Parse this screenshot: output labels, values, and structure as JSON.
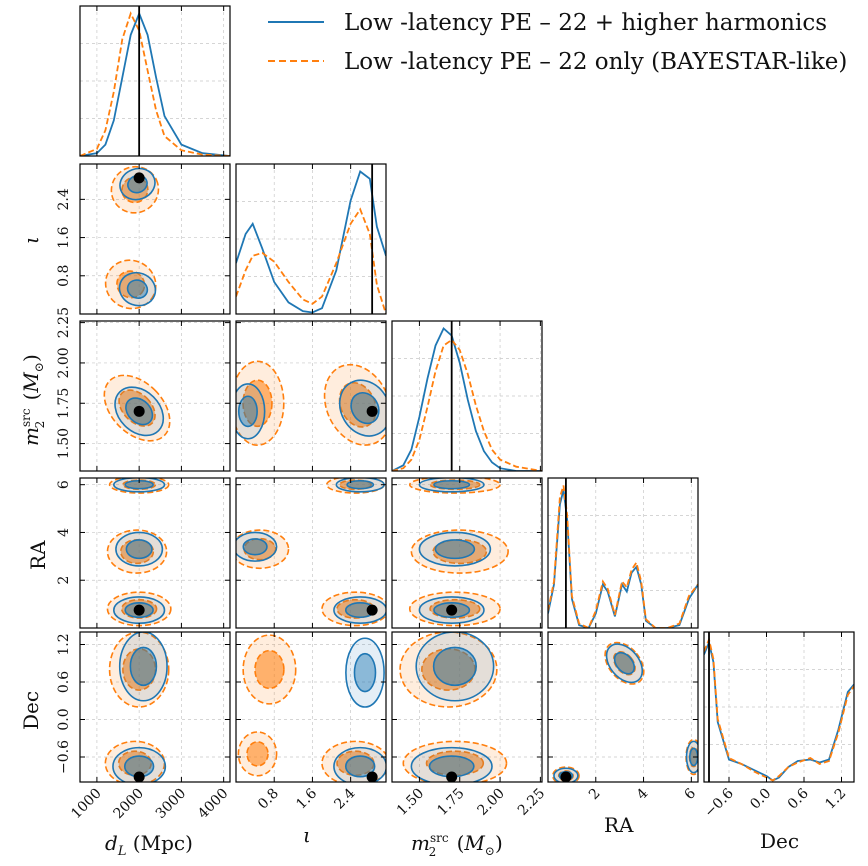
{
  "legend": [
    {
      "label": "Low -latency PE – 22 + higher harmonics",
      "color": "#1f77b4",
      "dash": "solid"
    },
    {
      "label": "Low -latency PE – 22 only (BAYESTAR-like)",
      "color": "#ff7f0e",
      "dash": "dashed"
    }
  ],
  "axis_labels": {
    "dL": "d_L (Mpc)",
    "iota": "ι",
    "m2": "m_2^src (M_⊙)",
    "RA": "RA",
    "Dec": "Dec"
  },
  "chart_data": {
    "type": "corner",
    "params": [
      "dL",
      "iota",
      "m2",
      "RA",
      "Dec"
    ],
    "ranges": {
      "dL": [
        600,
        4150
      ],
      "iota": [
        0.0,
        3.14
      ],
      "m2": [
        1.33,
        2.26
      ],
      "RA": [
        0.0,
        6.28
      ],
      "Dec": [
        -1.0,
        1.4
      ]
    },
    "ticks": {
      "dL": [
        "1000",
        "2000",
        "3000",
        "4000"
      ],
      "iota": [
        "0.8",
        "1.6",
        "2.4"
      ],
      "m2": [
        "1.50",
        "1.75",
        "2.00",
        "2.25"
      ],
      "RA": [
        "2",
        "4",
        "6"
      ],
      "Dec": [
        "−0.6",
        "0.0",
        "0.6",
        "1.2"
      ]
    },
    "injection": {
      "dL": 2000,
      "iota": 2.85,
      "m2": 1.7,
      "RA": 0.75,
      "Dec": -0.92
    },
    "marginals": {
      "dL": {
        "x": [
          600,
          1000,
          1200,
          1400,
          1600,
          1800,
          2000,
          2200,
          2400,
          2600,
          3000,
          3500,
          4150
        ],
        "hh": [
          0.0,
          0.02,
          0.08,
          0.25,
          0.55,
          0.85,
          1.0,
          0.85,
          0.55,
          0.28,
          0.08,
          0.02,
          0.0
        ],
        "22": [
          0.0,
          0.05,
          0.18,
          0.45,
          0.82,
          1.0,
          0.88,
          0.6,
          0.32,
          0.14,
          0.04,
          0.01,
          0.0
        ]
      },
      "iota": {
        "x": [
          0.0,
          0.2,
          0.35,
          0.55,
          0.8,
          1.1,
          1.4,
          1.6,
          1.8,
          2.1,
          2.4,
          2.6,
          2.8,
          2.95,
          3.14
        ],
        "hh": [
          0.35,
          0.55,
          0.62,
          0.45,
          0.22,
          0.08,
          0.02,
          0.01,
          0.04,
          0.3,
          0.78,
          0.98,
          0.93,
          0.6,
          0.4
        ],
        "22": [
          0.12,
          0.3,
          0.4,
          0.42,
          0.36,
          0.22,
          0.1,
          0.07,
          0.12,
          0.35,
          0.62,
          0.72,
          0.55,
          0.2,
          0.0
        ]
      },
      "m2": {
        "x": [
          1.33,
          1.4,
          1.45,
          1.5,
          1.55,
          1.6,
          1.65,
          1.7,
          1.75,
          1.8,
          1.85,
          1.9,
          1.95,
          2.0,
          2.1,
          2.26
        ],
        "hh": [
          0.0,
          0.04,
          0.15,
          0.38,
          0.65,
          0.88,
          1.0,
          0.95,
          0.76,
          0.5,
          0.28,
          0.14,
          0.06,
          0.02,
          0.0,
          0.0
        ],
        "22": [
          0.0,
          0.02,
          0.08,
          0.22,
          0.45,
          0.7,
          0.88,
          0.92,
          0.85,
          0.68,
          0.46,
          0.28,
          0.15,
          0.08,
          0.03,
          0.0
        ]
      },
      "RA": {
        "x": [
          0.0,
          0.25,
          0.5,
          0.65,
          0.8,
          1.0,
          1.3,
          1.7,
          2.0,
          2.3,
          2.5,
          2.8,
          3.1,
          3.3,
          3.5,
          3.7,
          3.9,
          4.1,
          4.5,
          5.0,
          5.5,
          5.9,
          6.28
        ],
        "hh": [
          0.1,
          0.3,
          0.85,
          0.95,
          0.75,
          0.2,
          0.02,
          0.0,
          0.1,
          0.3,
          0.25,
          0.08,
          0.3,
          0.25,
          0.38,
          0.42,
          0.3,
          0.05,
          0.0,
          0.0,
          0.02,
          0.2,
          0.3
        ],
        "22": [
          0.12,
          0.32,
          0.9,
          0.98,
          0.78,
          0.22,
          0.03,
          0.0,
          0.12,
          0.32,
          0.27,
          0.09,
          0.32,
          0.28,
          0.4,
          0.45,
          0.32,
          0.06,
          0.0,
          0.0,
          0.03,
          0.22,
          0.3
        ]
      },
      "Dec": {
        "x": [
          -1.0,
          -0.92,
          -0.85,
          -0.78,
          -0.6,
          -0.4,
          -0.2,
          0.0,
          0.1,
          0.2,
          0.35,
          0.5,
          0.7,
          0.85,
          1.0,
          1.15,
          1.3,
          1.4
        ],
        "hh": [
          0.85,
          0.93,
          0.8,
          0.4,
          0.15,
          0.12,
          0.08,
          0.04,
          0.01,
          0.03,
          0.1,
          0.14,
          0.15,
          0.13,
          0.15,
          0.35,
          0.6,
          0.65
        ],
        "22": [
          0.87,
          0.95,
          0.82,
          0.42,
          0.16,
          0.12,
          0.07,
          0.03,
          0.01,
          0.04,
          0.1,
          0.13,
          0.16,
          0.12,
          0.14,
          0.33,
          0.58,
          0.64
        ]
      }
    },
    "contours": {
      "hh": {
        "dL_iota": [
          {
            "cx": 1960,
            "cy": 2.72,
            "rx": 420,
            "ry": 0.32,
            "angle": -20
          },
          {
            "cx": 1960,
            "cy": 0.52,
            "rx": 430,
            "ry": 0.34,
            "angle": 20
          }
        ],
        "dL_m2": [
          {
            "cx": 2000,
            "cy": 1.7,
            "rx": 480,
            "ry": 0.17,
            "angle": -45
          }
        ],
        "iota_m2": [
          {
            "cx": 0.25,
            "cy": 1.7,
            "rx": 0.35,
            "ry": 0.17,
            "angle": 0
          },
          {
            "cx": 2.7,
            "cy": 1.72,
            "rx": 0.5,
            "ry": 0.18,
            "angle": -30
          }
        ],
        "dL_RA": [
          {
            "cx": 2000,
            "cy": 0.75,
            "rx": 600,
            "ry": 0.55,
            "angle": 0
          },
          {
            "cx": 2000,
            "cy": 3.3,
            "rx": 550,
            "ry": 0.7,
            "angle": 0
          },
          {
            "cx": 2000,
            "cy": 6.0,
            "rx": 600,
            "ry": 0.3,
            "angle": 0
          }
        ],
        "iota_RA": [
          {
            "cx": 2.6,
            "cy": 0.75,
            "rx": 0.55,
            "ry": 0.55,
            "angle": 0
          },
          {
            "cx": 0.4,
            "cy": 3.4,
            "rx": 0.45,
            "ry": 0.6,
            "angle": 0
          },
          {
            "cx": 2.6,
            "cy": 6.0,
            "rx": 0.5,
            "ry": 0.3,
            "angle": 0
          }
        ],
        "m2_RA": [
          {
            "cx": 1.7,
            "cy": 0.75,
            "rx": 0.2,
            "ry": 0.55,
            "angle": 0
          },
          {
            "cx": 1.72,
            "cy": 3.3,
            "rx": 0.22,
            "ry": 0.7,
            "angle": 0
          },
          {
            "cx": 1.7,
            "cy": 6.0,
            "rx": 0.2,
            "ry": 0.3,
            "angle": 0
          }
        ],
        "dL_Dec": [
          {
            "cx": 2000,
            "cy": -0.75,
            "rx": 620,
            "ry": 0.3,
            "angle": 0
          },
          {
            "cx": 2100,
            "cy": 0.85,
            "rx": 560,
            "ry": 0.55,
            "angle": 0
          }
        ],
        "iota_Dec": [
          {
            "cx": 2.6,
            "cy": -0.75,
            "rx": 0.55,
            "ry": 0.3,
            "angle": 0
          },
          {
            "cx": 2.7,
            "cy": 0.75,
            "rx": 0.4,
            "ry": 0.55,
            "angle": 0
          }
        ],
        "m2_Dec": [
          {
            "cx": 1.7,
            "cy": -0.75,
            "rx": 0.25,
            "ry": 0.3,
            "angle": 0
          },
          {
            "cx": 1.72,
            "cy": 0.85,
            "rx": 0.24,
            "ry": 0.55,
            "angle": 0
          }
        ],
        "RA_Dec": [
          {
            "cx": 0.75,
            "cy": -0.9,
            "rx": 0.5,
            "ry": 0.12,
            "angle": 0
          },
          {
            "cx": 3.2,
            "cy": 0.9,
            "rx": 0.6,
            "ry": 0.35,
            "angle": -40
          },
          {
            "cx": 6.1,
            "cy": -0.6,
            "rx": 0.3,
            "ry": 0.25,
            "angle": 0
          }
        ]
      },
      "22": {
        "dL_iota": [
          {
            "cx": 1900,
            "cy": 2.6,
            "rx": 560,
            "ry": 0.48,
            "angle": -25
          },
          {
            "cx": 1800,
            "cy": 0.62,
            "rx": 600,
            "ry": 0.5,
            "angle": 25
          }
        ],
        "dL_m2": [
          {
            "cx": 1950,
            "cy": 1.72,
            "rx": 600,
            "ry": 0.24,
            "angle": -45
          }
        ],
        "iota_m2": [
          {
            "cx": 0.45,
            "cy": 1.75,
            "rx": 0.55,
            "ry": 0.26,
            "angle": 0
          },
          {
            "cx": 2.55,
            "cy": 1.74,
            "rx": 0.65,
            "ry": 0.26,
            "angle": -25
          }
        ],
        "dL_RA": [
          {
            "cx": 2000,
            "cy": 0.8,
            "rx": 750,
            "ry": 0.7,
            "angle": 0
          },
          {
            "cx": 1950,
            "cy": 3.2,
            "rx": 700,
            "ry": 0.9,
            "angle": 0
          },
          {
            "cx": 2000,
            "cy": 6.0,
            "rx": 700,
            "ry": 0.35,
            "angle": 0
          }
        ],
        "iota_RA": [
          {
            "cx": 2.5,
            "cy": 0.8,
            "rx": 0.7,
            "ry": 0.7,
            "angle": 0
          },
          {
            "cx": 0.5,
            "cy": 3.3,
            "rx": 0.6,
            "ry": 0.8,
            "angle": 0
          },
          {
            "cx": 2.5,
            "cy": 6.0,
            "rx": 0.6,
            "ry": 0.35,
            "angle": 0
          }
        ],
        "m2_RA": [
          {
            "cx": 1.72,
            "cy": 0.8,
            "rx": 0.28,
            "ry": 0.7,
            "angle": 0
          },
          {
            "cx": 1.75,
            "cy": 3.2,
            "rx": 0.3,
            "ry": 0.9,
            "angle": 0
          },
          {
            "cx": 1.72,
            "cy": 6.0,
            "rx": 0.28,
            "ry": 0.35,
            "angle": 0
          }
        ],
        "dL_Dec": [
          {
            "cx": 1900,
            "cy": -0.7,
            "rx": 700,
            "ry": 0.35,
            "angle": 0
          },
          {
            "cx": 2000,
            "cy": 0.8,
            "rx": 700,
            "ry": 0.6,
            "angle": 0
          }
        ],
        "iota_Dec": [
          {
            "cx": 2.5,
            "cy": -0.7,
            "rx": 0.7,
            "ry": 0.35,
            "angle": 0
          },
          {
            "cx": 0.7,
            "cy": 0.8,
            "rx": 0.55,
            "ry": 0.55,
            "angle": 0
          },
          {
            "cx": 0.45,
            "cy": -0.55,
            "rx": 0.4,
            "ry": 0.35,
            "angle": 0
          }
        ],
        "m2_Dec": [
          {
            "cx": 1.72,
            "cy": -0.7,
            "rx": 0.32,
            "ry": 0.35,
            "angle": 0
          },
          {
            "cx": 1.68,
            "cy": 0.8,
            "rx": 0.3,
            "ry": 0.6,
            "angle": 0
          }
        ],
        "RA_Dec": [
          {
            "cx": 0.75,
            "cy": -0.9,
            "rx": 0.55,
            "ry": 0.14,
            "angle": 0
          },
          {
            "cx": 3.2,
            "cy": 0.9,
            "rx": 0.65,
            "ry": 0.38,
            "angle": -40
          },
          {
            "cx": 6.1,
            "cy": -0.6,
            "rx": 0.32,
            "ry": 0.28,
            "angle": 0
          }
        ]
      }
    }
  }
}
